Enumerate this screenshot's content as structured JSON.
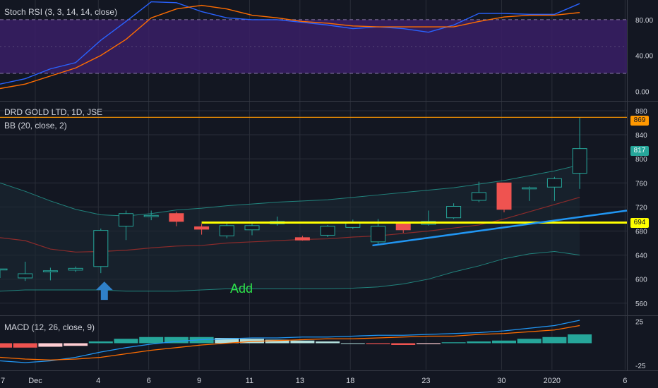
{
  "colors": {
    "background": "#131722",
    "grid": "#2a2e39",
    "axis_text": "#d1d4dc",
    "candle_up": "#26a69a",
    "candle_down": "#ef5350",
    "bb_basis": "#8b2b2b",
    "bb_band": "#26a69a",
    "macd_line": "#2196f3",
    "signal_line": "#ff6d00",
    "rsi_k": "#2962ff",
    "rsi_d": "#ff6d00",
    "rsi_band_fill": "#3a1e66",
    "level_869": "#ff9800",
    "level_694": "#ffff00",
    "trendline": "#2196f3",
    "arrow": "#2f80c8",
    "annotation": "#2ee24a",
    "last_price_tag": "#26a69a"
  },
  "chart_data": [
    {
      "type": "line",
      "title": "Stoch RSI (3, 3, 14, 14, close)",
      "ylim": [
        -10,
        102
      ],
      "yticks": [
        "80.00",
        "40.00",
        "0.00"
      ],
      "ytick_values": [
        80,
        40,
        0
      ],
      "band": [
        20,
        80
      ],
      "x_index": [
        0,
        1,
        2,
        3,
        4,
        5,
        6,
        7,
        8,
        9,
        10,
        11,
        12,
        13,
        14,
        15,
        16,
        17,
        18,
        19,
        20,
        21,
        22,
        23
      ],
      "series": [
        {
          "values": [
            8,
            14,
            25,
            32,
            57,
            78,
            100,
            99,
            89,
            82,
            80,
            80,
            77,
            74,
            70,
            72,
            70,
            66,
            74,
            87,
            87,
            86,
            86,
            98
          ]
        },
        {
          "values": [
            3,
            8,
            17,
            26,
            40,
            58,
            82,
            92,
            96,
            92,
            85,
            82,
            78,
            76,
            73,
            72,
            72,
            72,
            72,
            78,
            83,
            85,
            85,
            88
          ]
        }
      ]
    },
    {
      "type": "candlestick",
      "title": "DRD GOLD LTD, 1D, JSE",
      "subtitle": "BB (20, close, 2)",
      "ylim": [
        541,
        894
      ],
      "yticks": [
        "880",
        "840",
        "800",
        "760",
        "720",
        "680",
        "640",
        "600",
        "560"
      ],
      "ytick_values": [
        880,
        840,
        800,
        760,
        720,
        680,
        640,
        600,
        560
      ],
      "candles": [
        {
          "o": 617,
          "h": 617,
          "l": 602,
          "c": 617,
          "dir": "up"
        },
        {
          "o": 602,
          "h": 629,
          "l": 597,
          "c": 609,
          "dir": "up"
        },
        {
          "o": 613,
          "h": 619,
          "l": 598,
          "c": 614,
          "dir": "up"
        },
        {
          "o": 615,
          "h": 621,
          "l": 612,
          "c": 618,
          "dir": "up"
        },
        {
          "o": 621,
          "h": 684,
          "l": 610,
          "c": 681,
          "dir": "up"
        },
        {
          "o": 688,
          "h": 714,
          "l": 665,
          "c": 709,
          "dir": "up"
        },
        {
          "o": 704,
          "h": 714,
          "l": 698,
          "c": 706,
          "dir": "up"
        },
        {
          "o": 709,
          "h": 712,
          "l": 688,
          "c": 696,
          "dir": "down"
        },
        {
          "o": 687,
          "h": 692,
          "l": 674,
          "c": 683,
          "dir": "down"
        },
        {
          "o": 672,
          "h": 694,
          "l": 668,
          "c": 689,
          "dir": "up"
        },
        {
          "o": 682,
          "h": 694,
          "l": 673,
          "c": 689,
          "dir": "up"
        },
        {
          "o": 692,
          "h": 704,
          "l": 689,
          "c": 696,
          "dir": "up"
        },
        {
          "o": 669,
          "h": 672,
          "l": 664,
          "c": 665,
          "dir": "down"
        },
        {
          "o": 673,
          "h": 690,
          "l": 670,
          "c": 688,
          "dir": "up"
        },
        {
          "o": 686,
          "h": 699,
          "l": 683,
          "c": 693,
          "dir": "up"
        },
        {
          "o": 662,
          "h": 700,
          "l": 656,
          "c": 688,
          "dir": "up"
        },
        {
          "o": 692,
          "h": 695,
          "l": 677,
          "c": 682,
          "dir": "down"
        },
        {
          "o": 691,
          "h": 714,
          "l": 689,
          "c": 696,
          "dir": "up"
        },
        {
          "o": 702,
          "h": 726,
          "l": 700,
          "c": 721,
          "dir": "up"
        },
        {
          "o": 731,
          "h": 762,
          "l": 728,
          "c": 744,
          "dir": "up"
        },
        {
          "o": 760,
          "h": 760,
          "l": 711,
          "c": 716,
          "dir": "down"
        },
        {
          "o": 750,
          "h": 754,
          "l": 730,
          "c": 752,
          "dir": "up"
        },
        {
          "o": 753,
          "h": 770,
          "l": 730,
          "c": 767,
          "dir": "up"
        },
        {
          "o": 776,
          "h": 869,
          "l": 750,
          "c": 817,
          "dir": "up"
        }
      ],
      "bb_upper": [
        760,
        746,
        730,
        716,
        707,
        705,
        709,
        715,
        718,
        722,
        725,
        728,
        730,
        732,
        736,
        740,
        744,
        748,
        752,
        758,
        764,
        772,
        780,
        790
      ],
      "bb_basis": [
        669,
        664,
        650,
        645,
        646,
        648,
        652,
        655,
        656,
        660,
        662,
        664,
        666,
        667,
        670,
        672,
        676,
        680,
        685,
        690,
        700,
        712,
        724,
        736
      ],
      "bb_lower": [
        580,
        582,
        582,
        582,
        582,
        580,
        580,
        580,
        582,
        584,
        584,
        584,
        584,
        584,
        585,
        587,
        592,
        600,
        612,
        622,
        634,
        642,
        646,
        640
      ],
      "levels": [
        {
          "value": 869,
          "label": "869"
        },
        {
          "value": 694,
          "label": "694"
        }
      ],
      "last_price": "817",
      "trendline": [
        {
          "x": 15,
          "y": 656
        },
        {
          "x": 24,
          "y": 714
        }
      ],
      "annotation": "Add"
    },
    {
      "type": "bar",
      "title": "MACD (12, 26, close, 9)",
      "ylim": [
        -30,
        30
      ],
      "yticks": [
        "25",
        "-25"
      ],
      "ytick_values": [
        25,
        -25
      ],
      "histogram": [
        -5,
        -5,
        -4,
        -3,
        2,
        5,
        7,
        7,
        7,
        6,
        5,
        4,
        3,
        2,
        0,
        -1,
        -2,
        -1,
        1,
        2,
        3,
        5,
        7,
        10
      ],
      "macd": [
        -20,
        -22,
        -20,
        -16,
        -10,
        -5,
        -1,
        2,
        4,
        5,
        6,
        6,
        7,
        7,
        8,
        9,
        9,
        10,
        11,
        12,
        14,
        17,
        20,
        26
      ],
      "signal": [
        -16,
        -18,
        -19,
        -18,
        -16,
        -12,
        -8,
        -5,
        -2,
        0,
        2,
        3,
        4,
        5,
        5,
        6,
        7,
        8,
        8,
        10,
        11,
        13,
        15,
        20
      ]
    }
  ],
  "time_axis": {
    "labels": [
      "7",
      "Dec",
      "4",
      "6",
      "9",
      "11",
      "13",
      "18",
      "23",
      "30",
      "2020",
      "6"
    ],
    "label_index": [
      -1.3,
      1.4,
      3.9,
      5.9,
      7.9,
      9.9,
      11.9,
      13.9,
      16.9,
      19.9,
      21.9,
      24.8
    ]
  }
}
